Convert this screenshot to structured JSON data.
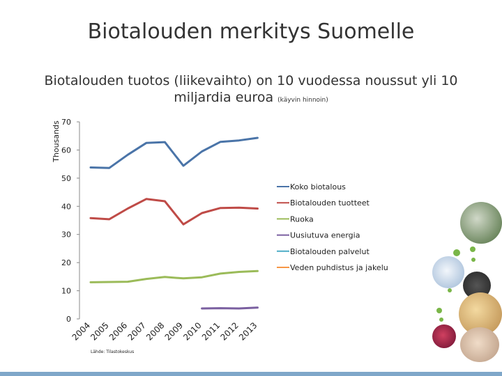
{
  "slide": {
    "title": "Biotalouden merkitys Suomelle",
    "subtitle_line1": "Biotalouden tuotos (liikevaihto) on 10 vuodessa noussut yli 10",
    "subtitle_line2": "miljardia euroa",
    "subtitle_note": "(käyvin hinnoin)"
  },
  "chart_data": {
    "type": "line",
    "ylabel": "Thousands",
    "ylim": [
      0,
      70
    ],
    "yticks": [
      0,
      10,
      20,
      30,
      40,
      50,
      60,
      70
    ],
    "categories": [
      "2004",
      "2005",
      "2006",
      "2007",
      "2008",
      "2009",
      "2010",
      "2011",
      "2012",
      "2013"
    ],
    "source": "Lähde: Tilastokeskus",
    "legend_position": "right",
    "series": [
      {
        "name": "Koko biotalous",
        "color": "#4a74a8",
        "values": [
          53.8,
          53.6,
          58.3,
          62.5,
          62.8,
          54.4,
          59.5,
          62.9,
          63.4,
          64.3
        ]
      },
      {
        "name": "Biotalouden tuotteet",
        "color": "#bf4b47",
        "values": [
          35.8,
          35.4,
          39.2,
          42.6,
          41.8,
          33.6,
          37.6,
          39.4,
          39.5,
          39.2
        ]
      },
      {
        "name": "Ruoka",
        "color": "#9bbb59",
        "values": [
          13.0,
          13.1,
          13.2,
          14.2,
          14.9,
          14.4,
          14.8,
          16.1,
          16.7,
          17.0
        ]
      },
      {
        "name": "Uusiutuva energia",
        "color": "#7a5fa0",
        "values": [
          null,
          null,
          null,
          null,
          null,
          null,
          3.7,
          3.8,
          3.7,
          4.0
        ]
      },
      {
        "name": "Biotalouden palvelut",
        "color": "#4bacc6",
        "values": [
          null,
          null,
          null,
          null,
          null,
          null,
          null,
          null,
          null,
          null
        ]
      },
      {
        "name": "Veden puhdistus ja jakelu",
        "color": "#f79646",
        "values": [
          null,
          null,
          null,
          null,
          null,
          null,
          null,
          null,
          null,
          null
        ]
      }
    ]
  },
  "decor": {
    "photos": [
      "fuel-pump-photo",
      "bottle-product-photo",
      "phone-photo",
      "sandwich-photo",
      "berries-photo",
      "shell-photo"
    ],
    "bar_color": "#7fa7c9"
  }
}
